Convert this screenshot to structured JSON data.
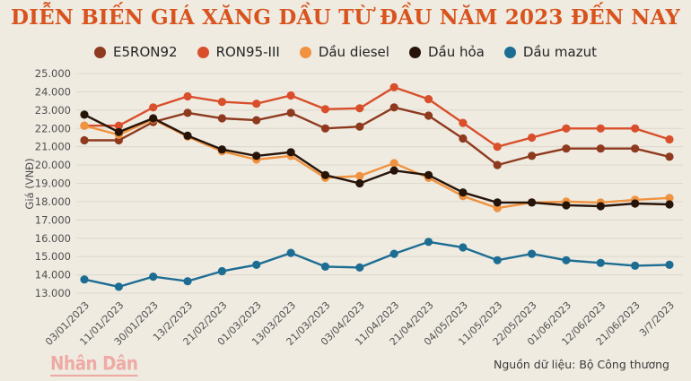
{
  "colors": {
    "background": "#efebe1",
    "title": "#d8531d",
    "grid": "#ddd8cb",
    "axis_text": "#4f4f4f",
    "logo": "#eeaaa4",
    "source_text": "#3b3b3b"
  },
  "chart_data": {
    "type": "line",
    "title": "DIỄN BIẾN GIÁ XĂNG DẦU TỪ ĐẦU NĂM 2023 ĐẾN NAY",
    "xlabel": "",
    "ylabel": "Giá (VNĐ)",
    "ylim": [
      13000,
      25000
    ],
    "ytick_step": 1000,
    "ytick_labels": [
      "25.000",
      "24.000",
      "23.000",
      "22.000",
      "21.000",
      "20.000",
      "19.000",
      "18.000",
      "17.000",
      "16.000",
      "15.000",
      "14.000",
      "13.000"
    ],
    "grid": true,
    "legend_position": "top",
    "categories": [
      "03/01/2023",
      "11/01/2023",
      "30/01/2023",
      "13/2/2023",
      "21/02/2023",
      "01/03/2023",
      "13/03/2023",
      "21/03/2023",
      "03/04/2023",
      "11/04/2023",
      "21/04/2023",
      "04/05/2023",
      "11/05/2023",
      "22/05/2023",
      "01/06/2023",
      "12/06/2023",
      "21/06/2023",
      "3/7/2023"
    ],
    "series": [
      {
        "name": "E5RON92",
        "color": "#8e3a1f",
        "values": [
          21350,
          21350,
          22350,
          22850,
          22550,
          22450,
          22850,
          22000,
          22100,
          23150,
          22700,
          21450,
          20000,
          20500,
          20900,
          20900,
          20900,
          20450
        ]
      },
      {
        "name": "RON95-III",
        "color": "#d94f2b",
        "values": [
          22150,
          22150,
          23150,
          23750,
          23450,
          23350,
          23800,
          23050,
          23100,
          24250,
          23600,
          22300,
          21000,
          21500,
          22000,
          22000,
          22000,
          21400
        ]
      },
      {
        "name": "Dầu diesel",
        "color": "#f0923f",
        "values": [
          22150,
          21650,
          22500,
          21550,
          20750,
          20300,
          20500,
          19300,
          19400,
          20100,
          19300,
          18300,
          17650,
          17950,
          18000,
          17950,
          18100,
          18200
        ]
      },
      {
        "name": "Dầu hỏa",
        "color": "#261409",
        "values": [
          22750,
          21800,
          22550,
          21600,
          20850,
          20500,
          20700,
          19450,
          19000,
          19700,
          19450,
          18500,
          17950,
          17950,
          17800,
          17750,
          17900,
          17850
        ]
      },
      {
        "name": "Dầu mazut",
        "color": "#1d6d93",
        "values": [
          13750,
          13350,
          13900,
          13650,
          14200,
          14550,
          15200,
          14450,
          14400,
          15150,
          15800,
          15500,
          14800,
          15150,
          14800,
          14650,
          14500,
          14550
        ]
      }
    ]
  },
  "footer": {
    "logo_text": "Nhân Dân",
    "source_label": "Nguồn dữ liệu: Bộ Công thương"
  }
}
